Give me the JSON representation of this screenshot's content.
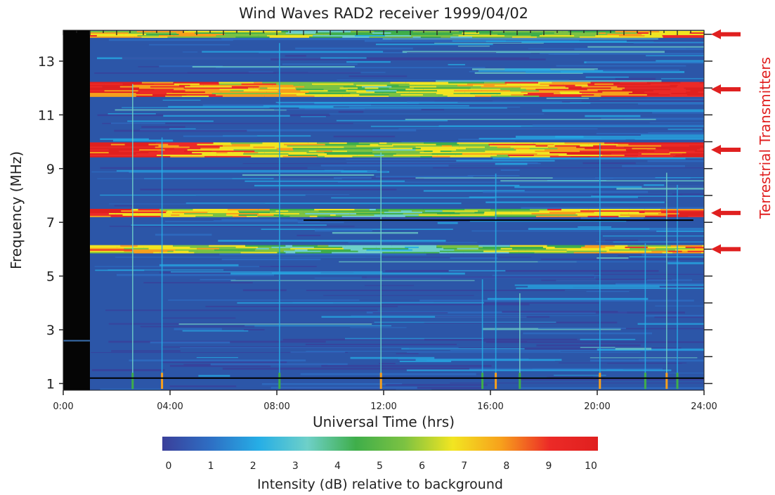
{
  "chart_data": {
    "type": "heatmap",
    "title": "Wind Waves RAD2 receiver 1999/04/02",
    "xlabel": "Universal Time (hrs)",
    "ylabel": "Frequency (MHz)",
    "xlim": [
      0,
      24
    ],
    "ylim": [
      0.75,
      14.15
    ],
    "x_ticks": [
      {
        "value": 0,
        "label": "0:00"
      },
      {
        "value": 4,
        "label": "04:00"
      },
      {
        "value": 8,
        "label": "08:00"
      },
      {
        "value": 12,
        "label": "12:00"
      },
      {
        "value": 16,
        "label": "16:00"
      },
      {
        "value": 20,
        "label": "20:00"
      },
      {
        "value": 24,
        "label": "24:00"
      }
    ],
    "y_ticks": [
      {
        "value": 1,
        "label": "1"
      },
      {
        "value": 3,
        "label": "3"
      },
      {
        "value": 5,
        "label": "5"
      },
      {
        "value": 7,
        "label": "7"
      },
      {
        "value": 9,
        "label": "9"
      },
      {
        "value": 11,
        "label": "11"
      },
      {
        "value": 13,
        "label": "13"
      }
    ],
    "data_gap_hours": [
      0,
      1
    ],
    "background_color": "#2c56a8",
    "colorbar": {
      "label": "Intensity (dB) relative to background",
      "ticks": [
        "0",
        "1",
        "2",
        "3",
        "4",
        "5",
        "6",
        "7",
        "8",
        "9",
        "10"
      ],
      "range": [
        0,
        10
      ],
      "colors": [
        "#3a3f9a",
        "#2e6fc4",
        "#26aee6",
        "#6ed0c8",
        "#3fae4a",
        "#7cc242",
        "#f2e521",
        "#f7a01c",
        "#ec2a27",
        "#e0201f"
      ]
    },
    "annotation": {
      "text": "Terrestrial Transmitters",
      "color": "#e02020",
      "arrow_frequencies_mhz": [
        14.0,
        11.95,
        9.7,
        7.35,
        6.0
      ]
    },
    "hot_bands": [
      {
        "freq_mhz": 14.0,
        "width_mhz": 0.25,
        "intensity_db": 7
      },
      {
        "freq_mhz": 11.95,
        "width_mhz": 0.55,
        "intensity_db": 9
      },
      {
        "freq_mhz": 9.7,
        "width_mhz": 0.55,
        "intensity_db": 9
      },
      {
        "freq_mhz": 7.35,
        "width_mhz": 0.3,
        "intensity_db": 8
      },
      {
        "freq_mhz": 6.0,
        "width_mhz": 0.3,
        "intensity_db": 7
      }
    ],
    "vertical_bursts_hours": [
      2.6,
      3.7,
      8.1,
      11.9,
      15.7,
      16.2,
      17.1,
      20.1,
      21.8,
      22.6,
      23.0
    ]
  }
}
